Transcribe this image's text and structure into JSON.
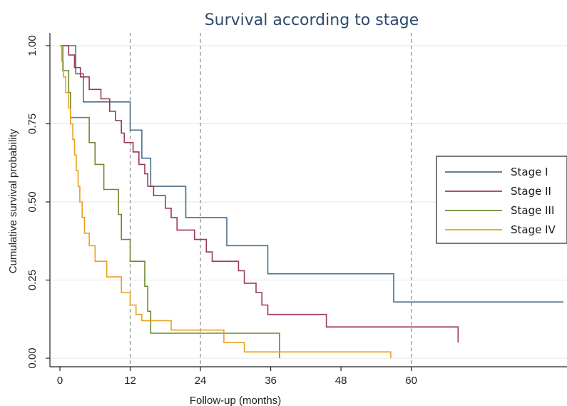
{
  "chart_data": {
    "type": "line",
    "step": true,
    "title": "Survival according to stage",
    "xlabel": "Follow-up (months)",
    "ylabel": "Cumulative survival probability",
    "xlim": [
      0,
      68
    ],
    "ylim": [
      0,
      1
    ],
    "xticks": [
      0,
      12,
      24,
      36,
      48,
      60
    ],
    "xtick_labels": [
      "0",
      "12",
      "24",
      "36",
      "48",
      "60"
    ],
    "yticks": [
      0,
      0.25,
      0.5,
      0.75,
      1.0
    ],
    "ytick_labels": [
      "0.00",
      "0.25",
      "0.50",
      "0.75",
      "1.00"
    ],
    "reference_lines_x": [
      12,
      24,
      60
    ],
    "grid": "horizontal",
    "legend_position": "right",
    "series": [
      {
        "name": "Stage I",
        "color": "#4a6e8c",
        "points": [
          [
            0,
            1.0
          ],
          [
            2.7,
            1.0
          ],
          [
            2.7,
            0.91
          ],
          [
            4.0,
            0.91
          ],
          [
            4.0,
            0.82
          ],
          [
            12.0,
            0.82
          ],
          [
            12.0,
            0.73
          ],
          [
            14.0,
            0.73
          ],
          [
            14.0,
            0.64
          ],
          [
            15.5,
            0.64
          ],
          [
            15.5,
            0.55
          ],
          [
            21.5,
            0.55
          ],
          [
            21.5,
            0.45
          ],
          [
            28.5,
            0.45
          ],
          [
            28.5,
            0.36
          ],
          [
            35.5,
            0.36
          ],
          [
            35.5,
            0.27
          ],
          [
            57.0,
            0.27
          ],
          [
            57.0,
            0.18
          ],
          [
            86.0,
            0.18
          ]
        ]
      },
      {
        "name": "Stage II",
        "color": "#9a3a52",
        "points": [
          [
            0,
            1.0
          ],
          [
            1.5,
            1.0
          ],
          [
            1.5,
            0.97
          ],
          [
            2.5,
            0.97
          ],
          [
            2.5,
            0.93
          ],
          [
            3.5,
            0.93
          ],
          [
            3.5,
            0.9
          ],
          [
            5.0,
            0.9
          ],
          [
            5.0,
            0.86
          ],
          [
            7.0,
            0.86
          ],
          [
            7.0,
            0.83
          ],
          [
            8.5,
            0.83
          ],
          [
            8.5,
            0.79
          ],
          [
            9.5,
            0.79
          ],
          [
            9.5,
            0.76
          ],
          [
            10.5,
            0.76
          ],
          [
            10.5,
            0.72
          ],
          [
            11.0,
            0.72
          ],
          [
            11.0,
            0.69
          ],
          [
            12.5,
            0.69
          ],
          [
            12.5,
            0.66
          ],
          [
            13.5,
            0.66
          ],
          [
            13.5,
            0.62
          ],
          [
            14.5,
            0.62
          ],
          [
            14.5,
            0.59
          ],
          [
            15.0,
            0.59
          ],
          [
            15.0,
            0.55
          ],
          [
            16.0,
            0.55
          ],
          [
            16.0,
            0.52
          ],
          [
            18.0,
            0.52
          ],
          [
            18.0,
            0.48
          ],
          [
            19.0,
            0.48
          ],
          [
            19.0,
            0.45
          ],
          [
            20.0,
            0.45
          ],
          [
            20.0,
            0.41
          ],
          [
            23.0,
            0.41
          ],
          [
            23.0,
            0.38
          ],
          [
            25.0,
            0.38
          ],
          [
            25.0,
            0.34
          ],
          [
            26.0,
            0.34
          ],
          [
            26.0,
            0.31
          ],
          [
            30.5,
            0.31
          ],
          [
            30.5,
            0.28
          ],
          [
            31.5,
            0.28
          ],
          [
            31.5,
            0.24
          ],
          [
            33.5,
            0.24
          ],
          [
            33.5,
            0.21
          ],
          [
            34.5,
            0.21
          ],
          [
            34.5,
            0.17
          ],
          [
            35.5,
            0.17
          ],
          [
            35.5,
            0.14
          ],
          [
            45.5,
            0.14
          ],
          [
            45.5,
            0.1
          ],
          [
            68.0,
            0.1
          ],
          [
            68.0,
            0.05
          ]
        ]
      },
      {
        "name": "Stage III",
        "color": "#6b8a2e",
        "points": [
          [
            0,
            1.0
          ],
          [
            0.5,
            1.0
          ],
          [
            0.5,
            0.92
          ],
          [
            1.5,
            0.92
          ],
          [
            1.5,
            0.85
          ],
          [
            1.8,
            0.85
          ],
          [
            1.8,
            0.77
          ],
          [
            5.0,
            0.77
          ],
          [
            5.0,
            0.69
          ],
          [
            6.0,
            0.69
          ],
          [
            6.0,
            0.62
          ],
          [
            7.5,
            0.62
          ],
          [
            7.5,
            0.54
          ],
          [
            10.0,
            0.54
          ],
          [
            10.0,
            0.46
          ],
          [
            10.5,
            0.46
          ],
          [
            10.5,
            0.38
          ],
          [
            12.0,
            0.38
          ],
          [
            12.0,
            0.31
          ],
          [
            14.5,
            0.31
          ],
          [
            14.5,
            0.23
          ],
          [
            15.0,
            0.23
          ],
          [
            15.0,
            0.15
          ],
          [
            15.5,
            0.15
          ],
          [
            15.5,
            0.08
          ],
          [
            37.5,
            0.08
          ],
          [
            37.5,
            0.0
          ]
        ]
      },
      {
        "name": "Stage IV",
        "color": "#e8a020",
        "points": [
          [
            0,
            1.0
          ],
          [
            0.3,
            1.0
          ],
          [
            0.3,
            0.95
          ],
          [
            0.6,
            0.95
          ],
          [
            0.6,
            0.9
          ],
          [
            1.0,
            0.9
          ],
          [
            1.0,
            0.85
          ],
          [
            1.5,
            0.85
          ],
          [
            1.5,
            0.8
          ],
          [
            1.8,
            0.8
          ],
          [
            1.8,
            0.75
          ],
          [
            2.2,
            0.75
          ],
          [
            2.2,
            0.7
          ],
          [
            2.5,
            0.7
          ],
          [
            2.5,
            0.65
          ],
          [
            2.8,
            0.65
          ],
          [
            2.8,
            0.6
          ],
          [
            3.1,
            0.6
          ],
          [
            3.1,
            0.55
          ],
          [
            3.4,
            0.55
          ],
          [
            3.4,
            0.5
          ],
          [
            3.8,
            0.5
          ],
          [
            3.8,
            0.45
          ],
          [
            4.2,
            0.45
          ],
          [
            4.2,
            0.4
          ],
          [
            5.0,
            0.4
          ],
          [
            5.0,
            0.36
          ],
          [
            6.0,
            0.36
          ],
          [
            6.0,
            0.31
          ],
          [
            8.0,
            0.31
          ],
          [
            8.0,
            0.26
          ],
          [
            10.5,
            0.26
          ],
          [
            10.5,
            0.21
          ],
          [
            12.0,
            0.21
          ],
          [
            12.0,
            0.17
          ],
          [
            13.0,
            0.17
          ],
          [
            13.0,
            0.14
          ],
          [
            14.0,
            0.14
          ],
          [
            14.0,
            0.12
          ],
          [
            19.0,
            0.12
          ],
          [
            19.0,
            0.09
          ],
          [
            28.0,
            0.09
          ],
          [
            28.0,
            0.05
          ],
          [
            31.5,
            0.05
          ],
          [
            31.5,
            0.02
          ],
          [
            56.5,
            0.02
          ],
          [
            56.5,
            0.0
          ]
        ]
      }
    ]
  }
}
